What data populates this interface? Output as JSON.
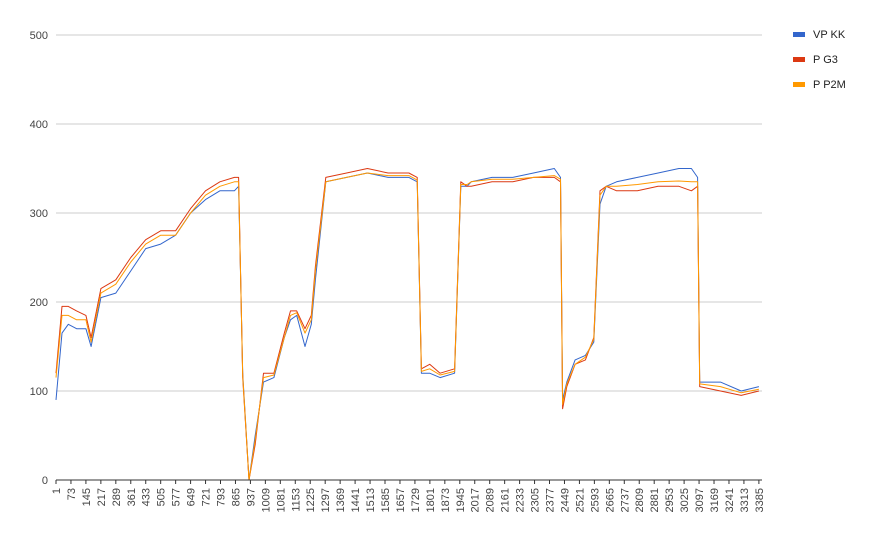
{
  "chart_data": {
    "type": "line",
    "title": "",
    "xlabel": "",
    "ylabel": "",
    "x_range": [
      1,
      3400
    ],
    "ylim": [
      0,
      500
    ],
    "y_ticks": [
      "0",
      "100",
      "200",
      "300",
      "400",
      "500"
    ],
    "x_ticks": [
      "1",
      "73",
      "145",
      "217",
      "289",
      "361",
      "433",
      "505",
      "577",
      "649",
      "721",
      "793",
      "865",
      "937",
      "1009",
      "1081",
      "1153",
      "1225",
      "1297",
      "1369",
      "1441",
      "1513",
      "1585",
      "1657",
      "1729",
      "1801",
      "1873",
      "1945",
      "2017",
      "2089",
      "2161",
      "2233",
      "2305",
      "2377",
      "2449",
      "2521",
      "2593",
      "2665",
      "2737",
      "2809",
      "2881",
      "2953",
      "3025",
      "3097",
      "3169",
      "3241",
      "3313",
      "3385"
    ],
    "grid": "horizontal",
    "legend_position": "right",
    "series": [
      {
        "name": "VP KK",
        "color": "#3366cc",
        "x": [
          1,
          30,
          60,
          100,
          145,
          170,
          217,
          289,
          361,
          433,
          505,
          577,
          649,
          721,
          790,
          860,
          880,
          900,
          930,
          960,
          1000,
          1050,
          1100,
          1130,
          1160,
          1200,
          1230,
          1250,
          1300,
          1400,
          1500,
          1600,
          1700,
          1740,
          1760,
          1800,
          1850,
          1920,
          1950,
          1980,
          2000,
          2100,
          2200,
          2300,
          2400,
          2430,
          2440,
          2460,
          2500,
          2550,
          2590,
          2620,
          2650,
          2700,
          2800,
          2900,
          3000,
          3060,
          3090,
          3100,
          3200,
          3300,
          3385
        ],
        "values": [
          90,
          165,
          175,
          170,
          170,
          150,
          205,
          210,
          235,
          260,
          265,
          275,
          300,
          315,
          325,
          325,
          330,
          120,
          0,
          50,
          110,
          115,
          160,
          180,
          185,
          150,
          175,
          225,
          335,
          340,
          345,
          340,
          340,
          335,
          120,
          120,
          115,
          120,
          330,
          330,
          335,
          340,
          340,
          345,
          350,
          340,
          90,
          110,
          135,
          140,
          155,
          310,
          330,
          335,
          340,
          345,
          350,
          350,
          340,
          110,
          110,
          100,
          105
        ]
      },
      {
        "name": "P G3",
        "color": "#dc3912",
        "x": [
          1,
          30,
          60,
          100,
          145,
          170,
          217,
          289,
          361,
          433,
          505,
          577,
          649,
          721,
          790,
          860,
          880,
          900,
          930,
          960,
          1000,
          1050,
          1100,
          1130,
          1160,
          1200,
          1230,
          1250,
          1300,
          1400,
          1500,
          1600,
          1700,
          1740,
          1760,
          1800,
          1850,
          1920,
          1950,
          1980,
          2000,
          2100,
          2200,
          2300,
          2400,
          2430,
          2440,
          2460,
          2500,
          2550,
          2590,
          2620,
          2650,
          2700,
          2800,
          2900,
          3000,
          3060,
          3090,
          3100,
          3200,
          3300,
          3385
        ],
        "values": [
          120,
          195,
          195,
          190,
          185,
          160,
          215,
          225,
          250,
          270,
          280,
          280,
          305,
          325,
          335,
          340,
          340,
          115,
          0,
          40,
          120,
          120,
          165,
          190,
          190,
          170,
          185,
          240,
          340,
          345,
          350,
          345,
          345,
          340,
          125,
          130,
          120,
          125,
          335,
          330,
          330,
          335,
          335,
          340,
          340,
          335,
          80,
          105,
          130,
          135,
          160,
          325,
          330,
          325,
          325,
          330,
          330,
          325,
          330,
          105,
          100,
          95,
          100
        ]
      },
      {
        "name": "P P2M",
        "color": "#ff9900",
        "x": [
          1,
          30,
          60,
          100,
          145,
          170,
          217,
          289,
          361,
          433,
          505,
          577,
          649,
          721,
          790,
          860,
          880,
          900,
          930,
          960,
          1000,
          1050,
          1100,
          1130,
          1160,
          1200,
          1230,
          1250,
          1300,
          1400,
          1500,
          1600,
          1700,
          1740,
          1760,
          1800,
          1850,
          1920,
          1950,
          1980,
          2000,
          2100,
          2200,
          2300,
          2400,
          2430,
          2440,
          2460,
          2500,
          2550,
          2590,
          2620,
          2650,
          2700,
          2800,
          2900,
          3000,
          3060,
          3090,
          3100,
          3200,
          3300,
          3385
        ],
        "values": [
          115,
          185,
          185,
          180,
          180,
          155,
          210,
          220,
          245,
          265,
          275,
          275,
          300,
          320,
          330,
          335,
          335,
          118,
          0,
          45,
          115,
          118,
          160,
          185,
          188,
          165,
          180,
          235,
          335,
          340,
          345,
          342,
          342,
          337,
          122,
          125,
          118,
          122,
          332,
          332,
          335,
          338,
          338,
          340,
          342,
          338,
          85,
          108,
          130,
          138,
          158,
          320,
          330,
          330,
          332,
          335,
          336,
          335,
          335,
          108,
          105,
          98,
          102
        ]
      }
    ]
  }
}
